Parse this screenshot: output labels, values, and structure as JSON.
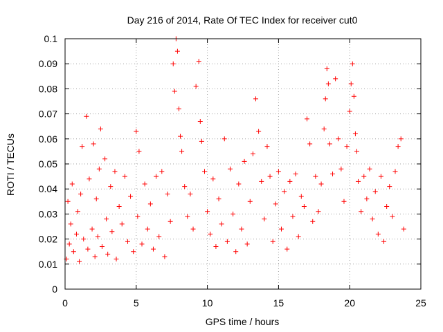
{
  "chart_data": {
    "type": "scatter",
    "title": "Day 216 of 2014, Rate Of TEC Index for receiver cut0",
    "xlabel": "GPS time / hours",
    "ylabel": "ROTI / TECUs",
    "xlim": [
      0,
      25
    ],
    "ylim": [
      0,
      0.1
    ],
    "x_ticks": [
      0,
      5,
      10,
      15,
      20,
      25
    ],
    "x_tick_labels": [
      "0",
      "5",
      "10",
      "15",
      "20",
      "25"
    ],
    "y_ticks": [
      0,
      0.01,
      0.02,
      0.03,
      0.04,
      0.05,
      0.06,
      0.07,
      0.08,
      0.09,
      0.1
    ],
    "y_tick_labels": [
      "0",
      "0.01",
      "0.02",
      "0.03",
      "0.04",
      "0.05",
      "0.06",
      "0.07",
      "0.08",
      "0.09",
      "0.1"
    ],
    "grid": true,
    "legend": "none",
    "marker": "+",
    "color": "#ff0000",
    "series": [
      {
        "x": [
          0.1,
          0.2,
          0.3,
          0.4,
          0.5,
          0.6,
          0.8,
          0.9,
          1.0,
          1.1,
          1.2,
          1.3,
          1.5,
          1.6,
          1.7,
          1.9,
          2.0,
          2.1,
          2.2,
          2.3,
          2.4,
          2.5,
          2.6,
          2.8,
          2.9,
          3.0,
          3.2,
          3.3,
          3.5,
          3.6,
          3.8,
          4.0,
          4.2,
          4.4,
          4.6,
          4.8,
          5.0,
          5.1,
          5.2,
          5.4,
          5.6,
          5.8,
          6.0,
          6.2,
          6.4,
          6.6,
          6.8,
          7.0,
          7.2,
          7.4,
          7.6,
          7.7,
          7.8,
          7.9,
          8.0,
          8.1,
          8.2,
          8.4,
          8.6,
          8.8,
          9.0,
          9.2,
          9.4,
          9.5,
          9.6,
          9.8,
          10.0,
          10.2,
          10.4,
          10.6,
          10.8,
          11.0,
          11.2,
          11.4,
          11.6,
          11.8,
          12.0,
          12.2,
          12.4,
          12.6,
          12.8,
          13.0,
          13.2,
          13.4,
          13.6,
          13.8,
          14.0,
          14.2,
          14.4,
          14.6,
          14.8,
          15.0,
          15.2,
          15.4,
          15.6,
          15.8,
          16.0,
          16.2,
          16.4,
          16.6,
          16.8,
          17.0,
          17.2,
          17.4,
          17.6,
          17.8,
          18.0,
          18.2,
          18.3,
          18.4,
          18.5,
          18.6,
          18.8,
          19.0,
          19.2,
          19.4,
          19.6,
          19.8,
          20.0,
          20.1,
          20.2,
          20.3,
          20.4,
          20.5,
          20.6,
          20.8,
          21.0,
          21.2,
          21.4,
          21.6,
          21.8,
          22.0,
          22.2,
          22.4,
          22.6,
          22.8,
          23.0,
          23.2,
          23.4,
          23.6,
          23.8
        ],
        "y": [
          0.012,
          0.035,
          0.018,
          0.026,
          0.042,
          0.015,
          0.022,
          0.031,
          0.011,
          0.038,
          0.057,
          0.02,
          0.069,
          0.016,
          0.044,
          0.024,
          0.058,
          0.013,
          0.036,
          0.021,
          0.048,
          0.064,
          0.017,
          0.052,
          0.028,
          0.014,
          0.041,
          0.023,
          0.047,
          0.012,
          0.033,
          0.026,
          0.045,
          0.019,
          0.037,
          0.015,
          0.063,
          0.029,
          0.055,
          0.018,
          0.042,
          0.024,
          0.034,
          0.016,
          0.045,
          0.021,
          0.047,
          0.013,
          0.038,
          0.027,
          0.09,
          0.079,
          0.1,
          0.095,
          0.072,
          0.061,
          0.055,
          0.041,
          0.029,
          0.038,
          0.024,
          0.081,
          0.091,
          0.067,
          0.059,
          0.047,
          0.031,
          0.022,
          0.044,
          0.017,
          0.036,
          0.026,
          0.06,
          0.019,
          0.048,
          0.03,
          0.015,
          0.042,
          0.024,
          0.051,
          0.018,
          0.035,
          0.054,
          0.076,
          0.063,
          0.043,
          0.028,
          0.057,
          0.045,
          0.019,
          0.034,
          0.047,
          0.024,
          0.039,
          0.016,
          0.043,
          0.029,
          0.046,
          0.021,
          0.037,
          0.033,
          0.068,
          0.058,
          0.027,
          0.045,
          0.031,
          0.042,
          0.064,
          0.076,
          0.088,
          0.082,
          0.058,
          0.046,
          0.084,
          0.06,
          0.048,
          0.035,
          0.057,
          0.071,
          0.082,
          0.09,
          0.077,
          0.062,
          0.055,
          0.043,
          0.031,
          0.045,
          0.036,
          0.048,
          0.028,
          0.039,
          0.022,
          0.045,
          0.019,
          0.033,
          0.041,
          0.029,
          0.047,
          0.057,
          0.06,
          0.024
        ]
      }
    ]
  }
}
